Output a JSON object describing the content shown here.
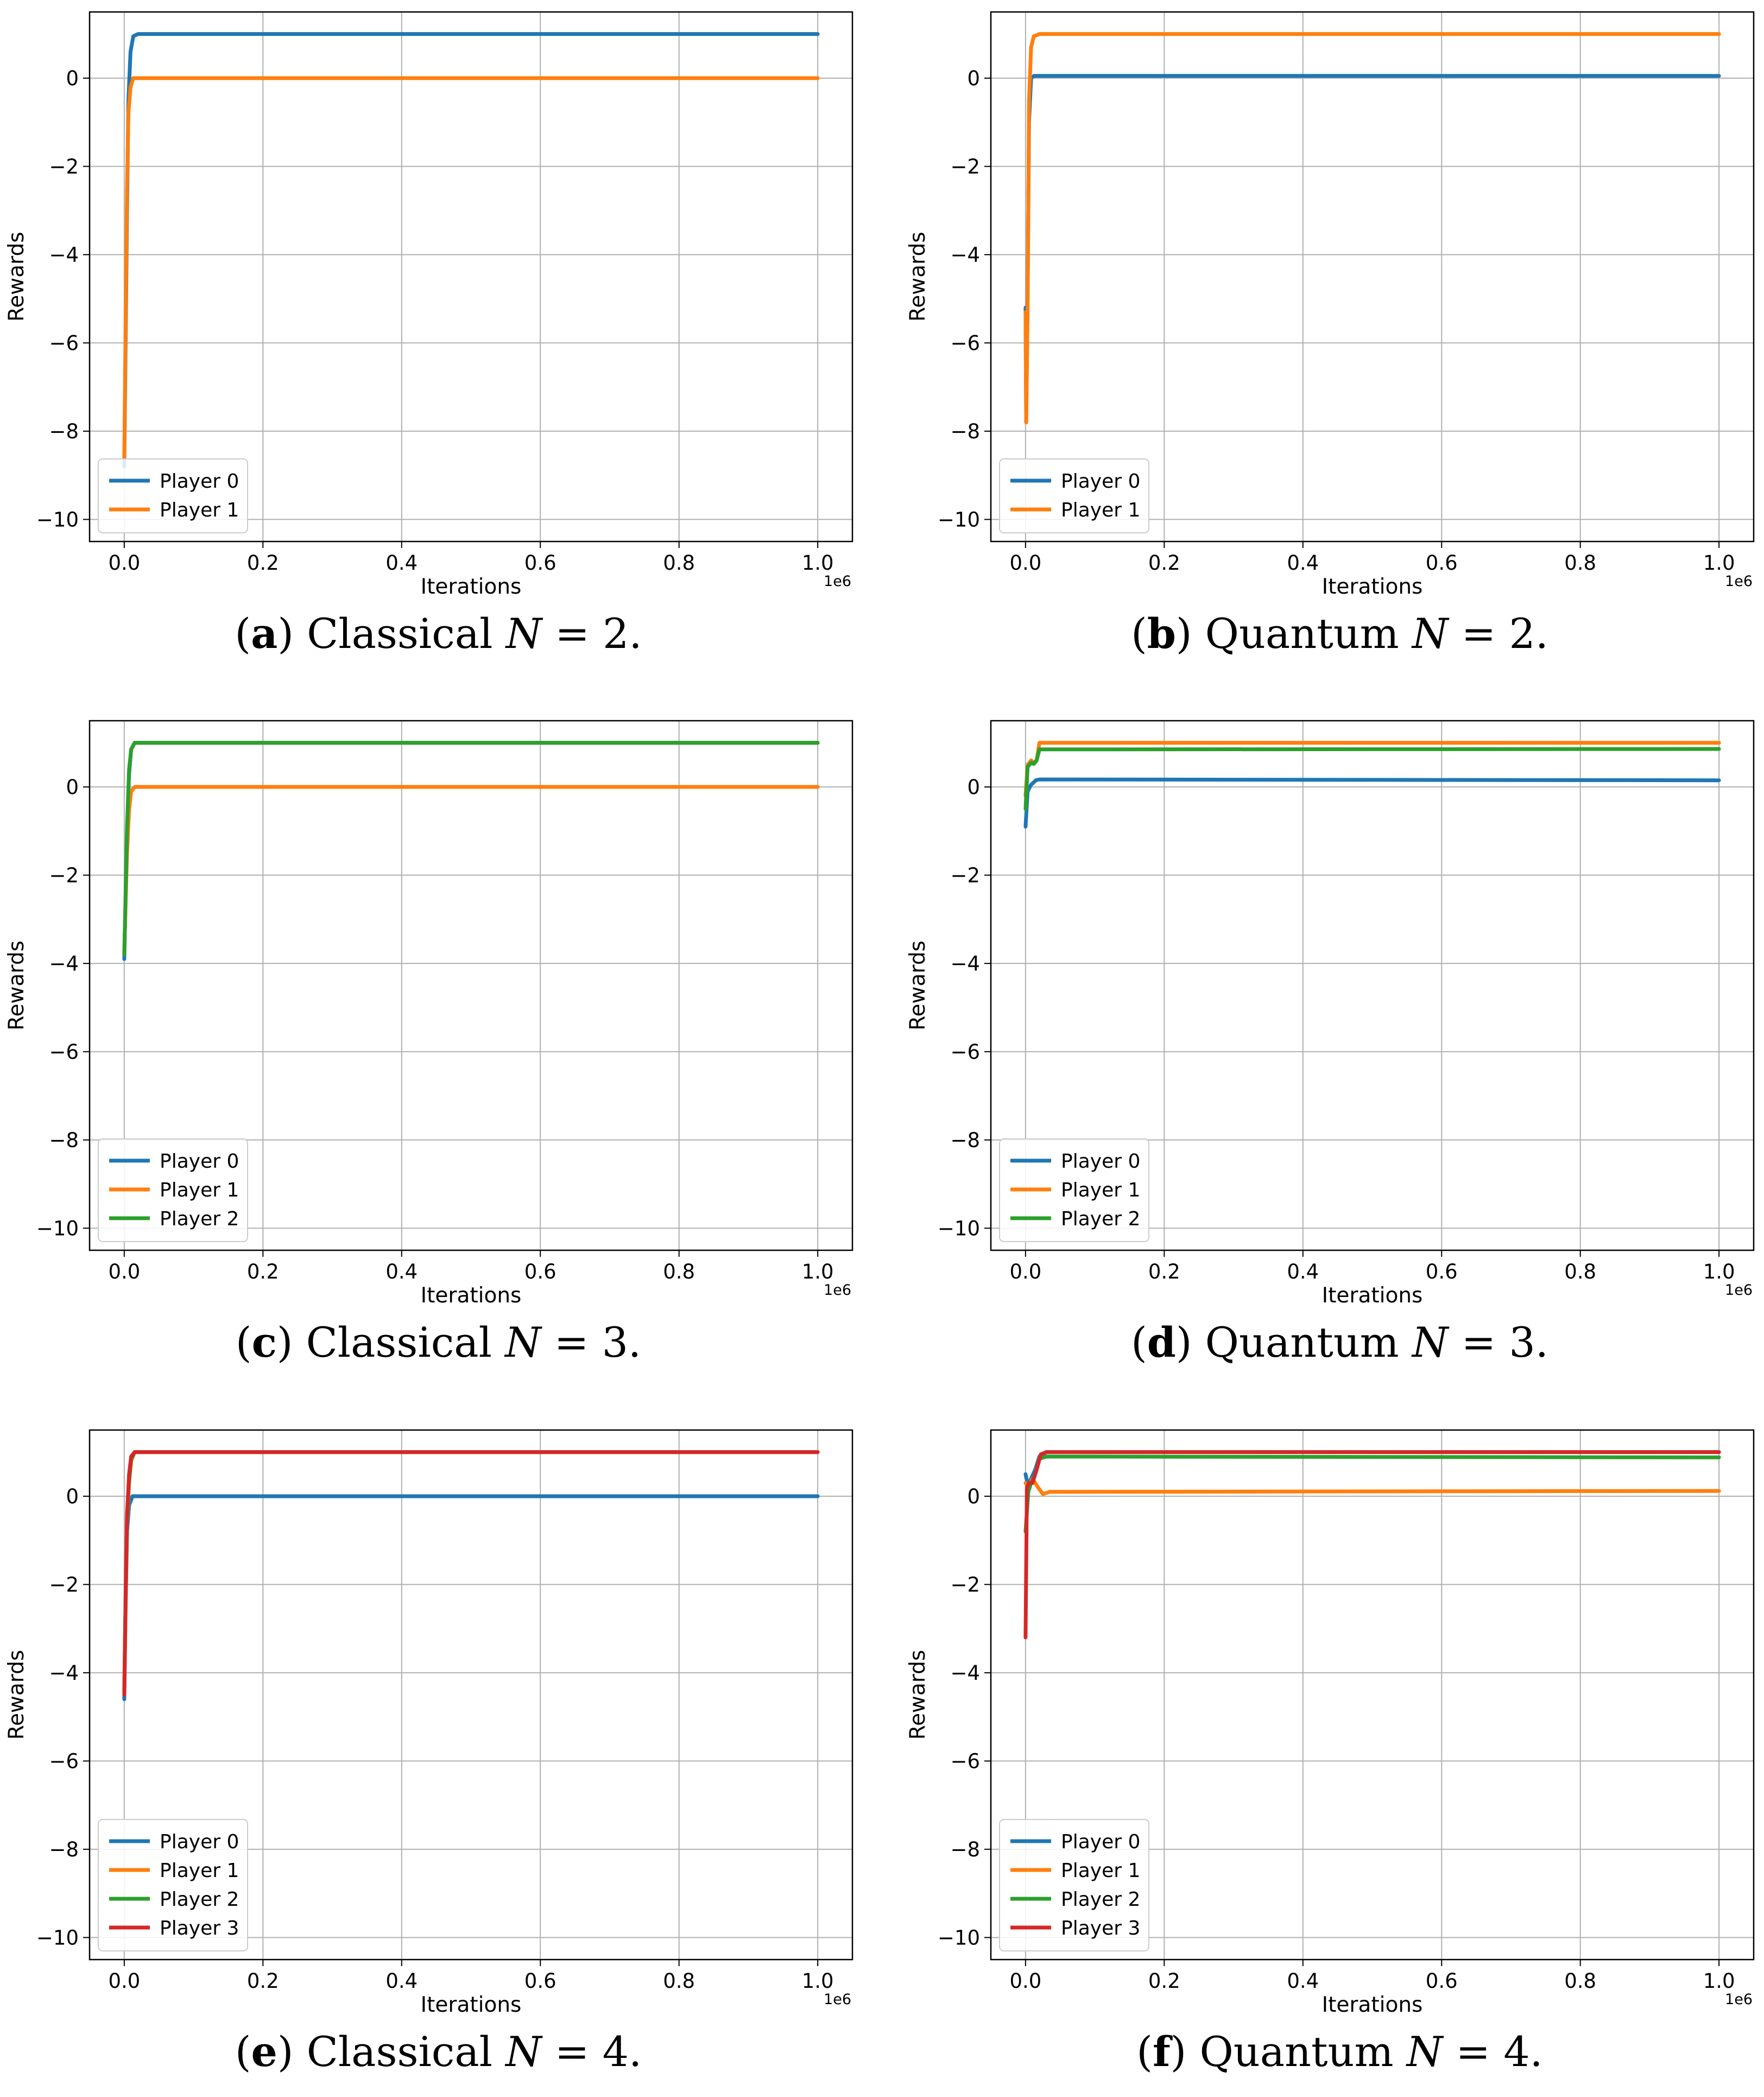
{
  "chart_data": [
    {
      "type": "line",
      "caption": {
        "letter": "a",
        "text": "Classical",
        "var": "N",
        "eq": "= 2."
      },
      "xlabel": "Iterations",
      "ylabel": "Rewards",
      "offset_text": "1e6",
      "xlim": [
        -0.05,
        1.05
      ],
      "ylim": [
        -10.5,
        1.5
      ],
      "xticks": [
        0.0,
        0.2,
        0.4,
        0.6,
        0.8,
        1.0
      ],
      "xtick_labels": [
        "0.0",
        "0.2",
        "0.4",
        "0.6",
        "0.8",
        "1.0"
      ],
      "yticks": [
        0,
        -2,
        -4,
        -6,
        -8,
        -10
      ],
      "ytick_labels": [
        "0",
        "−2",
        "−4",
        "−6",
        "−8",
        "−10"
      ],
      "grid": true,
      "legend_position": "lower-left",
      "series": [
        {
          "name": "Player 0",
          "color": "#1f77b4",
          "points": [
            [
              0,
              -8.8
            ],
            [
              0.002,
              -6.0
            ],
            [
              0.004,
              -3.0
            ],
            [
              0.006,
              -0.5
            ],
            [
              0.009,
              0.6
            ],
            [
              0.013,
              0.95
            ],
            [
              0.02,
              1.0
            ],
            [
              1.0,
              1.0
            ]
          ]
        },
        {
          "name": "Player 1",
          "color": "#ff7f0e",
          "points": [
            [
              0,
              -8.6
            ],
            [
              0.002,
              -5.5
            ],
            [
              0.004,
              -2.5
            ],
            [
              0.006,
              -0.8
            ],
            [
              0.009,
              -0.2
            ],
            [
              0.013,
              0.0
            ],
            [
              0.02,
              0.0
            ],
            [
              1.0,
              0.0
            ]
          ]
        }
      ]
    },
    {
      "type": "line",
      "caption": {
        "letter": "b",
        "text": "Quantum",
        "var": "N",
        "eq": "= 2."
      },
      "xlabel": "Iterations",
      "ylabel": "Rewards",
      "offset_text": "1e6",
      "xlim": [
        -0.05,
        1.05
      ],
      "ylim": [
        -10.5,
        1.5
      ],
      "xticks": [
        0.0,
        0.2,
        0.4,
        0.6,
        0.8,
        1.0
      ],
      "xtick_labels": [
        "0.0",
        "0.2",
        "0.4",
        "0.6",
        "0.8",
        "1.0"
      ],
      "yticks": [
        0,
        -2,
        -4,
        -6,
        -8,
        -10
      ],
      "ytick_labels": [
        "0",
        "−2",
        "−4",
        "−6",
        "−8",
        "−10"
      ],
      "grid": true,
      "legend_position": "lower-left",
      "series": [
        {
          "name": "Player 0",
          "color": "#1f77b4",
          "points": [
            [
              0,
              -5.2
            ],
            [
              0.001,
              -7.8
            ],
            [
              0.003,
              -5.0
            ],
            [
              0.005,
              -1.0
            ],
            [
              0.008,
              0.0
            ],
            [
              0.012,
              0.05
            ],
            [
              1.0,
              0.05
            ]
          ]
        },
        {
          "name": "Player 1",
          "color": "#ff7f0e",
          "points": [
            [
              0,
              -5.3
            ],
            [
              0.001,
              -7.8
            ],
            [
              0.003,
              -5.2
            ],
            [
              0.005,
              -0.5
            ],
            [
              0.008,
              0.7
            ],
            [
              0.012,
              0.95
            ],
            [
              0.02,
              1.0
            ],
            [
              1.0,
              1.0
            ]
          ]
        }
      ]
    },
    {
      "type": "line",
      "caption": {
        "letter": "c",
        "text": "Classical",
        "var": "N",
        "eq": "= 3."
      },
      "xlabel": "Iterations",
      "ylabel": "Rewards",
      "offset_text": "1e6",
      "xlim": [
        -0.05,
        1.05
      ],
      "ylim": [
        -10.5,
        1.5
      ],
      "xticks": [
        0.0,
        0.2,
        0.4,
        0.6,
        0.8,
        1.0
      ],
      "xtick_labels": [
        "0.0",
        "0.2",
        "0.4",
        "0.6",
        "0.8",
        "1.0"
      ],
      "yticks": [
        0,
        -2,
        -4,
        -6,
        -8,
        -10
      ],
      "ytick_labels": [
        "0",
        "−2",
        "−4",
        "−6",
        "−8",
        "−10"
      ],
      "grid": true,
      "legend_position": "lower-left",
      "series": [
        {
          "name": "Player 0",
          "color": "#1f77b4",
          "points": [
            [
              0,
              -3.9
            ],
            [
              0.002,
              -2.5
            ],
            [
              0.004,
              -1.0
            ],
            [
              0.007,
              0.3
            ],
            [
              0.01,
              0.85
            ],
            [
              0.015,
              1.0
            ],
            [
              1.0,
              1.0
            ]
          ]
        },
        {
          "name": "Player 1",
          "color": "#ff7f0e",
          "points": [
            [
              0,
              -3.8
            ],
            [
              0.002,
              -2.6
            ],
            [
              0.004,
              -1.5
            ],
            [
              0.007,
              -0.5
            ],
            [
              0.01,
              -0.1
            ],
            [
              0.015,
              0.0
            ],
            [
              1.0,
              0.0
            ]
          ]
        },
        {
          "name": "Player 2",
          "color": "#2ca02c",
          "points": [
            [
              0,
              -3.8
            ],
            [
              0.002,
              -2.4
            ],
            [
              0.004,
              -0.9
            ],
            [
              0.007,
              0.4
            ],
            [
              0.01,
              0.85
            ],
            [
              0.015,
              1.0
            ],
            [
              1.0,
              1.0
            ]
          ]
        }
      ]
    },
    {
      "type": "line",
      "caption": {
        "letter": "d",
        "text": "Quantum",
        "var": "N",
        "eq": "= 3."
      },
      "xlabel": "Iterations",
      "ylabel": "Rewards",
      "offset_text": "1e6",
      "xlim": [
        -0.05,
        1.05
      ],
      "ylim": [
        -10.5,
        1.5
      ],
      "xticks": [
        0.0,
        0.2,
        0.4,
        0.6,
        0.8,
        1.0
      ],
      "xtick_labels": [
        "0.0",
        "0.2",
        "0.4",
        "0.6",
        "0.8",
        "1.0"
      ],
      "yticks": [
        0,
        -2,
        -4,
        -6,
        -8,
        -10
      ],
      "ytick_labels": [
        "0",
        "−2",
        "−4",
        "−6",
        "−8",
        "−10"
      ],
      "grid": true,
      "legend_position": "lower-left",
      "series": [
        {
          "name": "Player 0",
          "color": "#1f77b4",
          "points": [
            [
              0,
              -0.9
            ],
            [
              0.003,
              -0.1
            ],
            [
              0.008,
              0.05
            ],
            [
              0.015,
              0.15
            ],
            [
              0.02,
              0.17
            ],
            [
              1.0,
              0.15
            ]
          ]
        },
        {
          "name": "Player 1",
          "color": "#ff7f0e",
          "points": [
            [
              0,
              -0.2
            ],
            [
              0.003,
              0.5
            ],
            [
              0.008,
              0.6
            ],
            [
              0.012,
              0.55
            ],
            [
              0.016,
              0.6
            ],
            [
              0.02,
              1.0
            ],
            [
              1.0,
              1.0
            ]
          ]
        },
        {
          "name": "Player 2",
          "color": "#2ca02c",
          "points": [
            [
              0,
              -0.5
            ],
            [
              0.003,
              0.45
            ],
            [
              0.008,
              0.55
            ],
            [
              0.012,
              0.52
            ],
            [
              0.016,
              0.6
            ],
            [
              0.02,
              0.85
            ],
            [
              1.0,
              0.86
            ]
          ]
        }
      ]
    },
    {
      "type": "line",
      "caption": {
        "letter": "e",
        "text": "Classical",
        "var": "N",
        "eq": "= 4."
      },
      "xlabel": "Iterations",
      "ylabel": "Rewards",
      "offset_text": "1e6",
      "xlim": [
        -0.05,
        1.05
      ],
      "ylim": [
        -10.5,
        1.5
      ],
      "xticks": [
        0.0,
        0.2,
        0.4,
        0.6,
        0.8,
        1.0
      ],
      "xtick_labels": [
        "0.0",
        "0.2",
        "0.4",
        "0.6",
        "0.8",
        "1.0"
      ],
      "yticks": [
        0,
        -2,
        -4,
        -6,
        -8,
        -10
      ],
      "ytick_labels": [
        "0",
        "−2",
        "−4",
        "−6",
        "−8",
        "−10"
      ],
      "grid": true,
      "legend_position": "lower-left",
      "series": [
        {
          "name": "Player 0",
          "color": "#1f77b4",
          "points": [
            [
              0,
              -4.6
            ],
            [
              0.002,
              -2.5
            ],
            [
              0.004,
              -0.8
            ],
            [
              0.007,
              -0.2
            ],
            [
              0.012,
              0.0
            ],
            [
              1.0,
              0.0
            ]
          ]
        },
        {
          "name": "Player 1",
          "color": "#ff7f0e",
          "points": [
            [
              0,
              -4.4
            ],
            [
              0.002,
              -2.4
            ],
            [
              0.004,
              -0.6
            ],
            [
              0.007,
              0.3
            ],
            [
              0.01,
              0.8
            ],
            [
              0.015,
              1.0
            ],
            [
              1.0,
              1.0
            ]
          ]
        },
        {
          "name": "Player 2",
          "color": "#2ca02c",
          "points": [
            [
              0,
              -4.4
            ],
            [
              0.002,
              -2.3
            ],
            [
              0.004,
              -0.5
            ],
            [
              0.007,
              0.4
            ],
            [
              0.01,
              0.85
            ],
            [
              0.015,
              1.0
            ],
            [
              1.0,
              1.0
            ]
          ]
        },
        {
          "name": "Player 3",
          "color": "#d62728",
          "points": [
            [
              0,
              -4.5
            ],
            [
              0.002,
              -2.2
            ],
            [
              0.004,
              -0.4
            ],
            [
              0.007,
              0.5
            ],
            [
              0.01,
              0.9
            ],
            [
              0.015,
              1.0
            ],
            [
              1.0,
              1.0
            ]
          ]
        }
      ]
    },
    {
      "type": "line",
      "caption": {
        "letter": "f",
        "text": "Quantum",
        "var": "N",
        "eq": "= 4."
      },
      "xlabel": "Iterations",
      "ylabel": "Rewards",
      "offset_text": "1e6",
      "xlim": [
        -0.05,
        1.05
      ],
      "ylim": [
        -10.5,
        1.5
      ],
      "xticks": [
        0.0,
        0.2,
        0.4,
        0.6,
        0.8,
        1.0
      ],
      "xtick_labels": [
        "0.0",
        "0.2",
        "0.4",
        "0.6",
        "0.8",
        "1.0"
      ],
      "yticks": [
        0,
        -2,
        -4,
        -6,
        -8,
        -10
      ],
      "ytick_labels": [
        "0",
        "−2",
        "−4",
        "−6",
        "−8",
        "−10"
      ],
      "grid": true,
      "legend_position": "lower-left",
      "series": [
        {
          "name": "Player 0",
          "color": "#1f77b4",
          "points": [
            [
              0,
              0.5
            ],
            [
              0.004,
              0.2
            ],
            [
              0.008,
              0.4
            ],
            [
              0.014,
              0.6
            ],
            [
              0.02,
              0.9
            ],
            [
              0.03,
              1.0
            ],
            [
              1.0,
              1.0
            ]
          ]
        },
        {
          "name": "Player 1",
          "color": "#ff7f0e",
          "points": [
            [
              0,
              0.3
            ],
            [
              0.004,
              0.2
            ],
            [
              0.01,
              0.4
            ],
            [
              0.018,
              0.2
            ],
            [
              0.025,
              0.05
            ],
            [
              0.035,
              0.1
            ],
            [
              1.0,
              0.12
            ]
          ]
        },
        {
          "name": "Player 2",
          "color": "#2ca02c",
          "points": [
            [
              0,
              -0.8
            ],
            [
              0.004,
              0.1
            ],
            [
              0.008,
              0.3
            ],
            [
              0.014,
              0.5
            ],
            [
              0.02,
              0.85
            ],
            [
              0.03,
              0.9
            ],
            [
              1.0,
              0.88
            ]
          ]
        },
        {
          "name": "Player 3",
          "color": "#d62728",
          "points": [
            [
              0,
              -3.2
            ],
            [
              0.002,
              0.2
            ],
            [
              0.005,
              0.3
            ],
            [
              0.01,
              0.3
            ],
            [
              0.016,
              0.6
            ],
            [
              0.022,
              0.95
            ],
            [
              0.03,
              1.0
            ],
            [
              1.0,
              1.0
            ]
          ]
        }
      ]
    }
  ]
}
